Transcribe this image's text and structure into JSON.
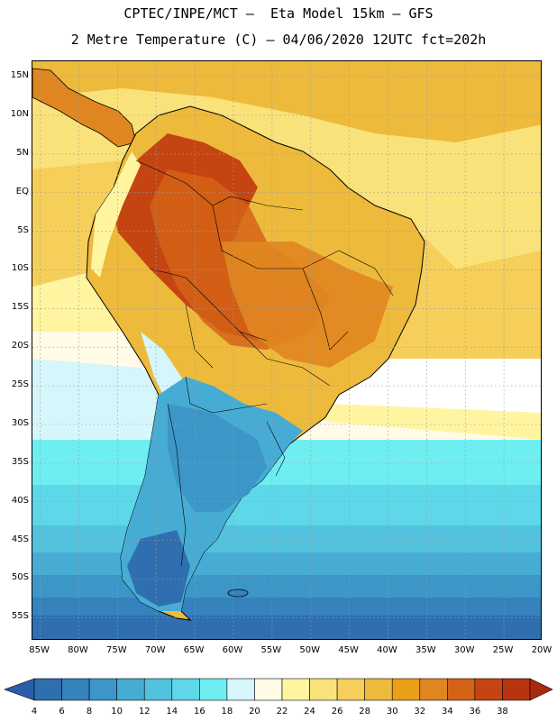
{
  "header": {
    "line1": "CPTEC/INPE/MCT –  Eta Model 15km – GFS",
    "line2": "2 Metre Temperature (C) – 04/06/2020 12UTC fct=202h"
  },
  "map": {
    "lat_ticks": [
      {
        "value": 15,
        "label": "15N"
      },
      {
        "value": 10,
        "label": "10N"
      },
      {
        "value": 5,
        "label": "5N"
      },
      {
        "value": 0,
        "label": "EQ"
      },
      {
        "value": -5,
        "label": "5S"
      },
      {
        "value": -10,
        "label": "10S"
      },
      {
        "value": -15,
        "label": "15S"
      },
      {
        "value": -20,
        "label": "20S"
      },
      {
        "value": -25,
        "label": "25S"
      },
      {
        "value": -30,
        "label": "30S"
      },
      {
        "value": -35,
        "label": "35S"
      },
      {
        "value": -40,
        "label": "40S"
      },
      {
        "value": -45,
        "label": "45S"
      },
      {
        "value": -50,
        "label": "50S"
      },
      {
        "value": -55,
        "label": "55S"
      }
    ],
    "lon_ticks": [
      {
        "value": -85,
        "label": "85W"
      },
      {
        "value": -80,
        "label": "80W"
      },
      {
        "value": -75,
        "label": "75W"
      },
      {
        "value": -70,
        "label": "70W"
      },
      {
        "value": -65,
        "label": "65W"
      },
      {
        "value": -60,
        "label": "60W"
      },
      {
        "value": -55,
        "label": "55W"
      },
      {
        "value": -50,
        "label": "50W"
      },
      {
        "value": -45,
        "label": "45W"
      },
      {
        "value": -40,
        "label": "40W"
      },
      {
        "value": -35,
        "label": "35W"
      },
      {
        "value": -30,
        "label": "30W"
      },
      {
        "value": -25,
        "label": "25W"
      },
      {
        "value": -20,
        "label": "20W"
      }
    ],
    "lat_range": [
      -58,
      17
    ],
    "lon_range": [
      -86,
      -20
    ]
  },
  "colorbar": {
    "labels": [
      "4",
      "6",
      "8",
      "10",
      "12",
      "14",
      "16",
      "18",
      "20",
      "22",
      "24",
      "26",
      "28",
      "30",
      "32",
      "34",
      "36",
      "38"
    ],
    "colors": [
      "#2a5ea8",
      "#2f6fb0",
      "#3582bc",
      "#3c97c8",
      "#47acd4",
      "#52c2de",
      "#5ed7e8",
      "#6feef2",
      "#d5f6fb",
      "#fffbe7",
      "#fff5a0",
      "#fae27a",
      "#f5cf5a",
      "#eeba3c",
      "#ea9f18",
      "#e08620",
      "#d46318",
      "#c54512",
      "#b83410",
      "#a82a0c"
    ],
    "left_arrow_color": "#2a5ea8",
    "right_arrow_color": "#a82a0c"
  }
}
